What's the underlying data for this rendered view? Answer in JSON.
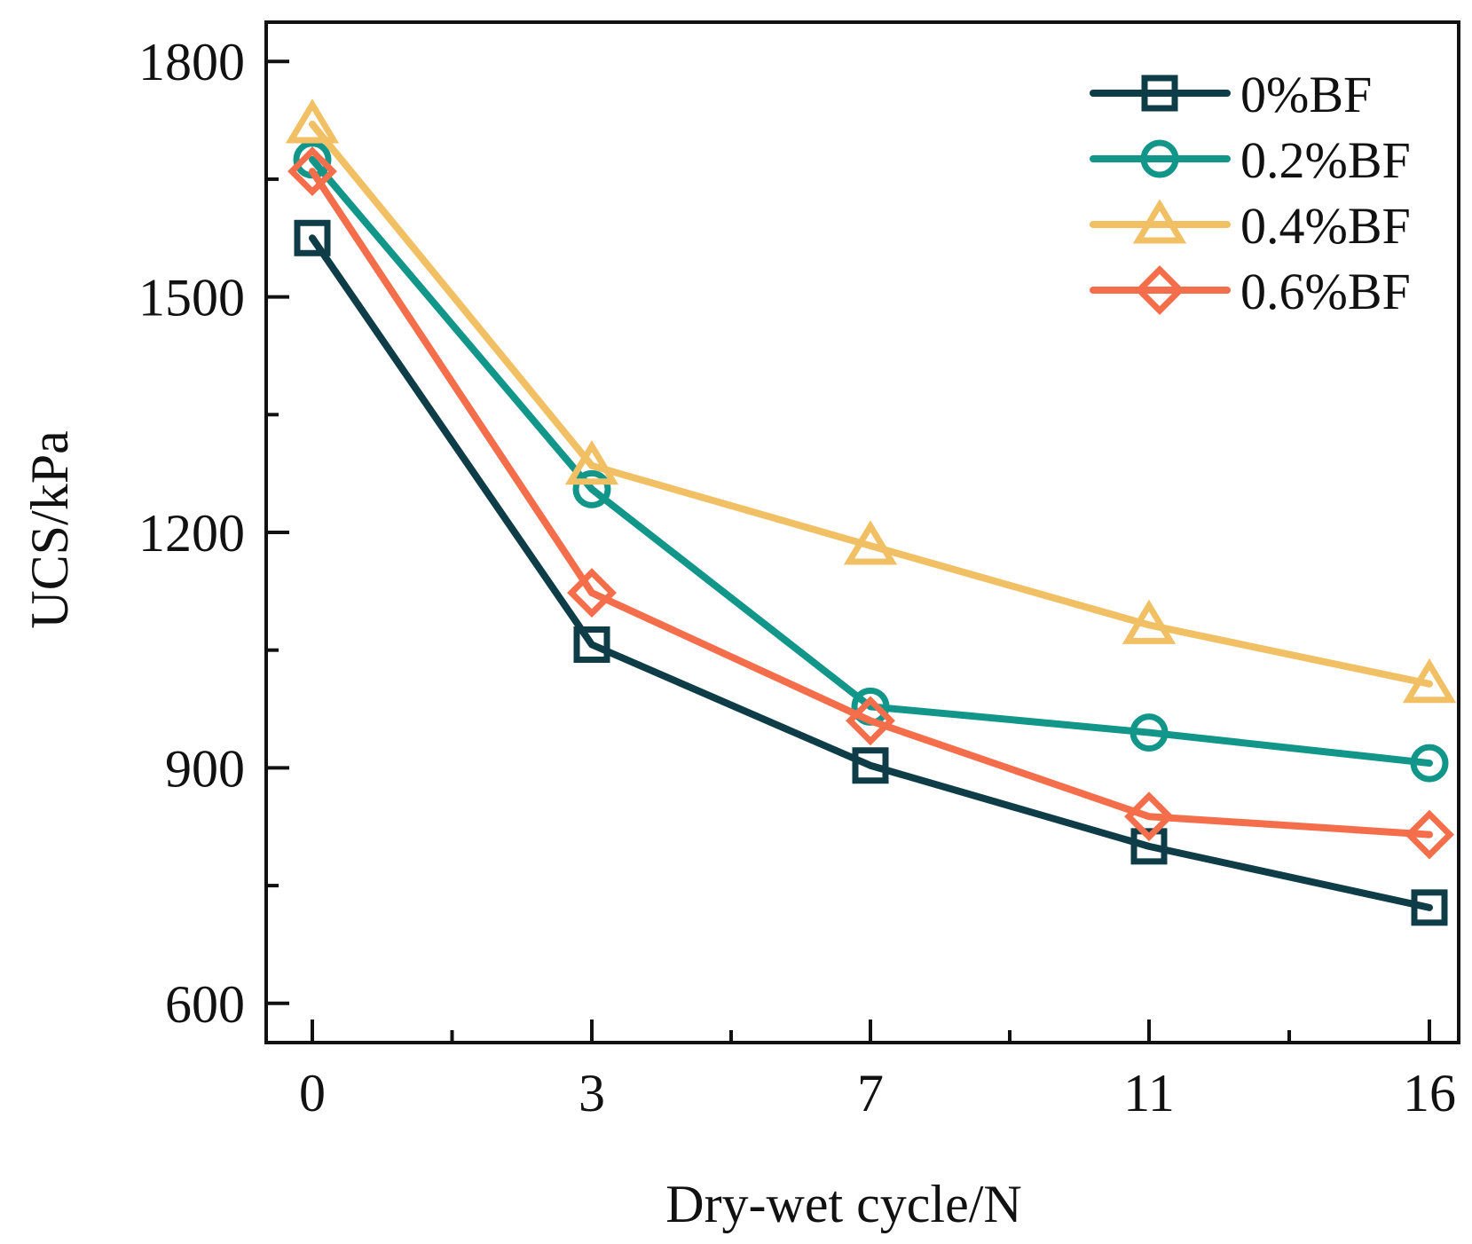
{
  "chart_data": {
    "type": "line",
    "title": "",
    "xlabel": "Dry-wet cycle/N",
    "ylabel": "UCS/kPa",
    "categories": [
      "0",
      "3",
      "7",
      "11",
      "16"
    ],
    "ylim": [
      550,
      1850
    ],
    "yticks_major": [
      600,
      900,
      1200,
      1500,
      1800
    ],
    "yticks_minor": [
      750,
      1050,
      1350,
      1650
    ],
    "legend_position": "top-right",
    "grid": false,
    "series": [
      {
        "name": "0%BF",
        "marker": "square",
        "color": "#0f3d47",
        "values": [
          1575,
          1057,
          903,
          800,
          722
        ]
      },
      {
        "name": "0.2%BF",
        "marker": "circle",
        "color": "#12968a",
        "values": [
          1675,
          1255,
          978,
          945,
          906
        ]
      },
      {
        "name": "0.4%BF",
        "marker": "triangle",
        "color": "#f1c065",
        "values": [
          1720,
          1285,
          1183,
          1082,
          1007
        ]
      },
      {
        "name": "0.6%BF",
        "marker": "diamond",
        "color": "#f56e4c",
        "values": [
          1660,
          1123,
          960,
          838,
          815
        ]
      }
    ]
  }
}
